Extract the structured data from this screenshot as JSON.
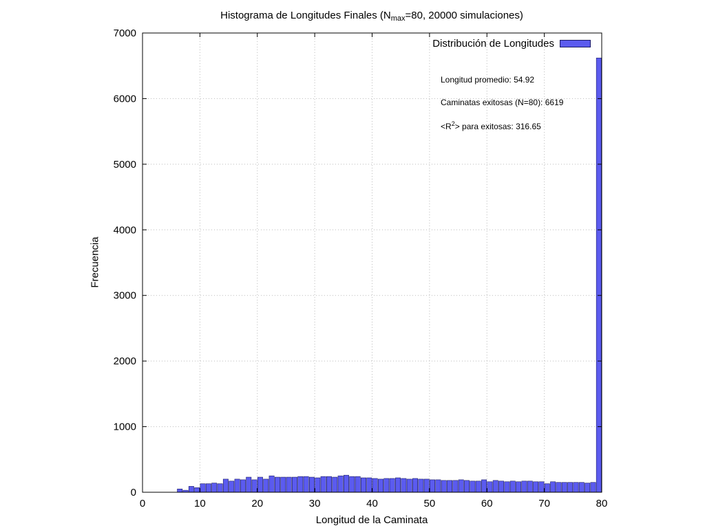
{
  "title_main": "Histograma de Longitudes Finales (N",
  "title_sub": "max",
  "title_rest": "=80, 20000 simulaciones)",
  "colors": {
    "bar_fill": "#5b5bef",
    "bar_stroke": "#1a1a66",
    "grid": "#bbbbbb"
  },
  "annotations": {
    "promedio": "Longitud promedio: 54.92",
    "exitosas": "Caminatas exitosas (N=80): 6619",
    "r2_pre": "<R",
    "r2_sup": "2",
    "r2_post": "> para exitosas: 316.65"
  },
  "chart_data": {
    "type": "bar",
    "title": "Histograma de Longitudes Finales (Nmax=80, 20000 simulaciones)",
    "xlabel": "Longitud de la Caminata",
    "ylabel": "Frecuencia",
    "xlim": [
      0,
      80
    ],
    "ylim": [
      0,
      7000
    ],
    "xticks": [
      0,
      10,
      20,
      30,
      40,
      50,
      60,
      70,
      80
    ],
    "yticks": [
      0,
      1000,
      2000,
      3000,
      4000,
      5000,
      6000,
      7000
    ],
    "grid": true,
    "legend_position": "top-right",
    "series": [
      {
        "name": "Distribución de Longitudes",
        "x": [
          7,
          8,
          9,
          10,
          11,
          12,
          13,
          14,
          15,
          16,
          17,
          18,
          19,
          20,
          21,
          22,
          23,
          24,
          25,
          26,
          27,
          28,
          29,
          30,
          31,
          32,
          33,
          34,
          35,
          36,
          37,
          38,
          39,
          40,
          41,
          42,
          43,
          44,
          45,
          46,
          47,
          48,
          49,
          50,
          51,
          52,
          53,
          54,
          55,
          56,
          57,
          58,
          59,
          60,
          61,
          62,
          63,
          64,
          65,
          66,
          67,
          68,
          69,
          70,
          71,
          72,
          73,
          74,
          75,
          76,
          77,
          78,
          79,
          80
        ],
        "values": [
          50,
          30,
          90,
          70,
          130,
          130,
          140,
          130,
          200,
          170,
          200,
          190,
          230,
          190,
          230,
          200,
          250,
          230,
          230,
          230,
          230,
          240,
          240,
          230,
          220,
          240,
          240,
          230,
          250,
          260,
          240,
          240,
          220,
          220,
          210,
          200,
          210,
          210,
          220,
          210,
          200,
          210,
          200,
          200,
          190,
          190,
          180,
          180,
          180,
          190,
          180,
          170,
          170,
          190,
          160,
          180,
          170,
          160,
          170,
          160,
          170,
          170,
          160,
          160,
          130,
          160,
          150,
          150,
          150,
          150,
          150,
          140,
          150,
          6619
        ]
      }
    ]
  }
}
